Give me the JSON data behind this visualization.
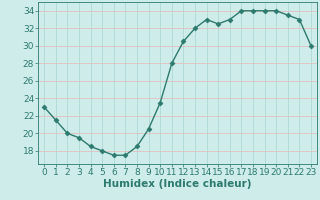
{
  "x": [
    0,
    1,
    2,
    3,
    4,
    5,
    6,
    7,
    8,
    9,
    10,
    11,
    12,
    13,
    14,
    15,
    16,
    17,
    18,
    19,
    20,
    21,
    22,
    23
  ],
  "y": [
    23,
    21.5,
    20,
    19.5,
    18.5,
    18,
    17.5,
    17.5,
    18.5,
    20.5,
    23.5,
    28,
    30.5,
    32,
    33,
    32.5,
    33,
    34,
    34,
    34,
    34,
    33.5,
    33,
    30
  ],
  "line_color": "#2d7a6e",
  "marker": "D",
  "marker_size": 2.5,
  "bg_color": "#ceecea",
  "grid_color_h": "#e8b8b8",
  "grid_color_v": "#a8d4cf",
  "xlabel": "Humidex (Indice chaleur)",
  "xlim": [
    -0.5,
    23.5
  ],
  "ylim": [
    16.5,
    35
  ],
  "yticks": [
    18,
    20,
    22,
    24,
    26,
    28,
    30,
    32,
    34
  ],
  "xticks": [
    0,
    1,
    2,
    3,
    4,
    5,
    6,
    7,
    8,
    9,
    10,
    11,
    12,
    13,
    14,
    15,
    16,
    17,
    18,
    19,
    20,
    21,
    22,
    23
  ],
  "tick_label_fontsize": 6.5,
  "xlabel_fontsize": 7.5,
  "linewidth": 1.0
}
